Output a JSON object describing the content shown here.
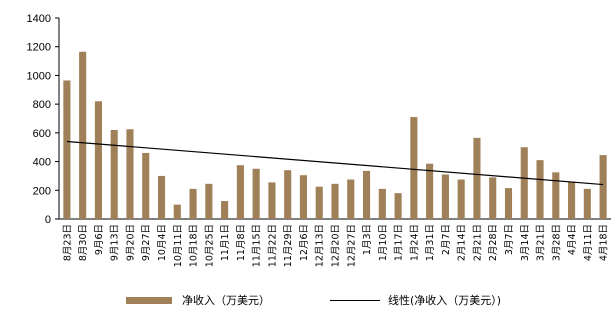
{
  "chart_data": {
    "type": "bar",
    "categories": [
      "8月23日",
      "8月30日",
      "9月6日",
      "9月13日",
      "9月20日",
      "9月27日",
      "10月4日",
      "10月11日",
      "10月18日",
      "10月25日",
      "11月1日",
      "11月8日",
      "11月15日",
      "11月22日",
      "11月29日",
      "12月6日",
      "12月13日",
      "12月20日",
      "12月27日",
      "1月3日",
      "1月10日",
      "1月17日",
      "1月24日",
      "1月31日",
      "2月7日",
      "2月14日",
      "2月21日",
      "2月28日",
      "3月7日",
      "3月14日",
      "3月21日",
      "3月28日",
      "4月4日",
      "4月11日",
      "4月18日"
    ],
    "series": [
      {
        "name": "净收入（万美元）",
        "color": "#a08058",
        "values": [
          965,
          1165,
          820,
          620,
          625,
          460,
          300,
          100,
          210,
          245,
          125,
          375,
          350,
          255,
          340,
          305,
          225,
          245,
          275,
          335,
          210,
          180,
          710,
          385,
          310,
          275,
          565,
          290,
          215,
          500,
          410,
          325,
          260,
          210,
          445
        ]
      }
    ],
    "trendline": {
      "name": "线性(净收入（万美元）)",
      "color": "#000000",
      "start": 540,
      "end": 240
    },
    "ylim": [
      0,
      1400
    ],
    "yticks": [
      0,
      200,
      400,
      600,
      800,
      1000,
      1200,
      1400
    ],
    "grid": false,
    "legend_position": "bottom"
  }
}
